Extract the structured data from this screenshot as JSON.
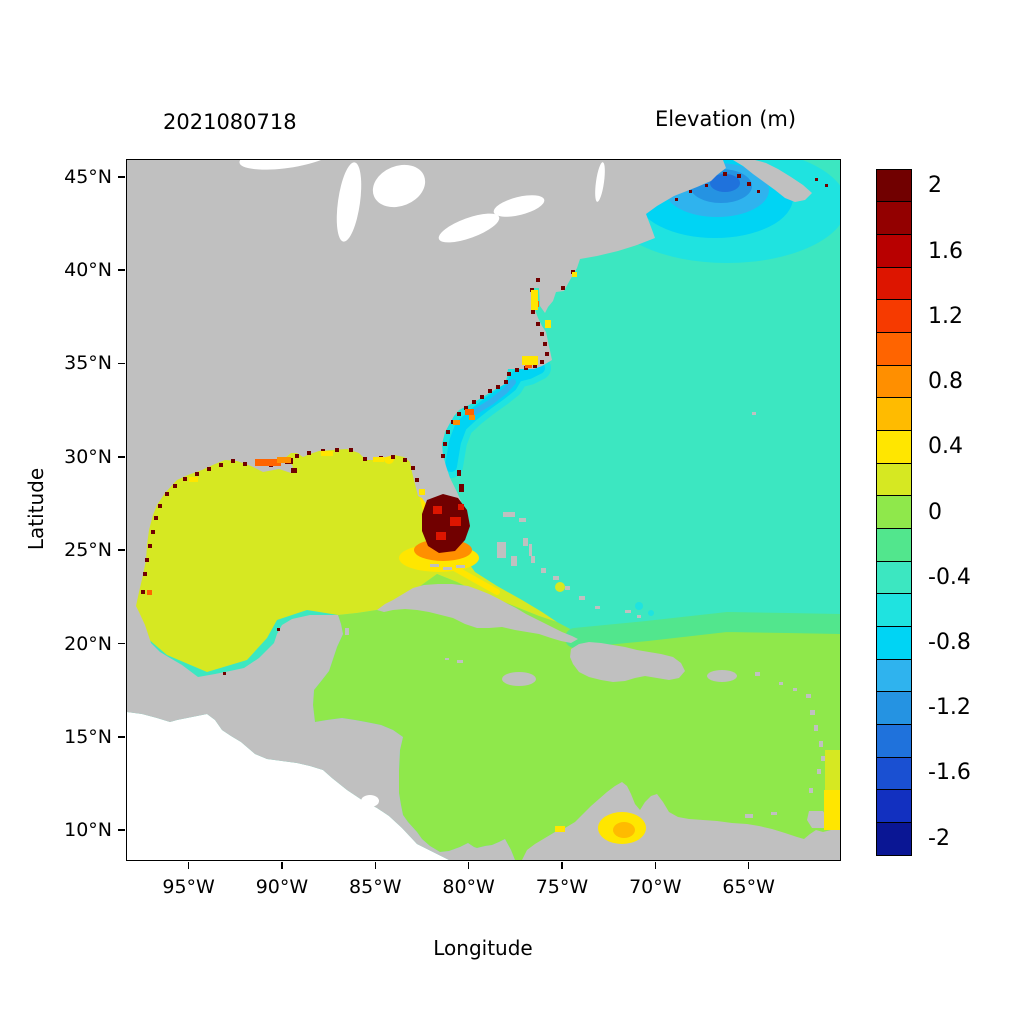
{
  "figure": {
    "background": "#ffffff",
    "frame_color": "#000000"
  },
  "chart_data": {
    "type": "heatmap",
    "map_kind": "geographic model field over western Atlantic, Gulf of Mexico and Caribbean",
    "timestamp_label": "2021080718",
    "field_label": "Elevation (m)",
    "xlabel": "Longitude",
    "ylabel": "Latitude",
    "x_tick_labels": [
      "95°W",
      "90°W",
      "85°W",
      "80°W",
      "75°W",
      "70°W",
      "65°W"
    ],
    "y_tick_labels": [
      "45°N",
      "40°N",
      "35°N",
      "30°N",
      "25°N",
      "20°N",
      "15°N",
      "10°N"
    ],
    "lon_range_deg": [
      -98.3,
      -60.1
    ],
    "lat_range_deg": [
      8.4,
      45.9
    ],
    "grid": false,
    "land_color": "#c0c0c0",
    "outside_domain_color": "#ffffff",
    "colorbar": {
      "units": "m",
      "position": "right",
      "tick_labels": [
        "2",
        "1.6",
        "1.2",
        "0.8",
        "0.4",
        "0",
        "-0.4",
        "-0.8",
        "-1.2",
        "-1.6",
        "-2"
      ],
      "tick_values": [
        2,
        1.6,
        1.2,
        0.8,
        0.4,
        0,
        -0.4,
        -0.8,
        -1.2,
        -1.6,
        -2
      ],
      "segment_step": 0.2,
      "n_segments": 21,
      "value_range": [
        -2.1,
        2.1
      ],
      "palette_top_to_bottom": [
        "#710000",
        "#930000",
        "#b80000",
        "#dd1500",
        "#f63a00",
        "#ff6400",
        "#ff8f00",
        "#ffbb00",
        "#ffe600",
        "#d6e822",
        "#8fe84b",
        "#52e68d",
        "#3ce7c1",
        "#1fe3e0",
        "#00d4f4",
        "#2fb3ee",
        "#2593e2",
        "#1f72dc",
        "#1a50d2",
        "#1230c0",
        "#0a1694"
      ]
    },
    "regions": [
      {
        "name": "Gulf of Mexico",
        "approx_elevation_m": 0.25
      },
      {
        "name": "Open Atlantic",
        "approx_elevation_m": -0.3
      },
      {
        "name": "Caribbean Sea and lower-right Atlantic",
        "approx_elevation_m": 0.1
      },
      {
        "name": "Gulf of Maine / Nova Scotia shelf anomaly",
        "approx_elevation_m": -1.3
      },
      {
        "name": "Carolina shelf coastal band",
        "approx_elevation_m": -0.8
      },
      {
        "name": "South Florida surge maximum",
        "approx_elevation_m": 2.0
      },
      {
        "name": "Louisiana coastal marsh",
        "approx_elevation_m": 1.2
      },
      {
        "name": "Gulf of Venezuela / Maracaibo",
        "approx_elevation_m": 0.4
      },
      {
        "name": "Coastal wet-cell speckles (Gulf and SE US coast)",
        "approx_elevation_m": 2.0
      },
      {
        "name": "Pacific (outside model domain)",
        "approx_elevation_m": null
      }
    ]
  }
}
